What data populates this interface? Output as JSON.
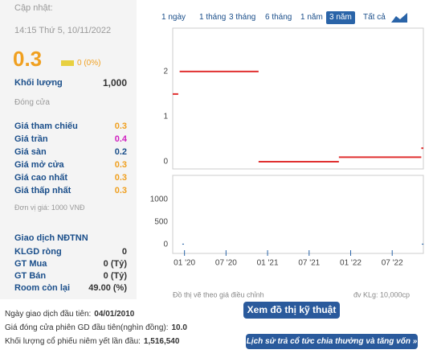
{
  "header": {
    "updated_label": "Cập nhật:",
    "updated_time": "14:15 Thứ 5, 10/11/2022",
    "price": "0.3",
    "change": "0 (0%)"
  },
  "volume": {
    "label": "Khối lượng",
    "value": "1,000",
    "close_label": "Đóng cửa"
  },
  "prices": [
    [
      "Giá tham chiếu",
      "0.3"
    ],
    [
      "Giá trần",
      "0.4"
    ],
    [
      "Giá sàn",
      "0.2"
    ],
    [
      "Giá mở cửa",
      "0.3"
    ],
    [
      "Giá cao nhất",
      "0.3"
    ],
    [
      "Giá thấp nhất",
      "0.3"
    ]
  ],
  "unit_note": "Đơn vị giá: 1000 VNĐ",
  "foreign": {
    "title": "Giao dịch NĐTNN",
    "rows": [
      [
        "KLGD ròng",
        "0"
      ],
      [
        "GT Mua",
        "0 (Tỷ)"
      ],
      [
        "GT Bán",
        "0 (Tỷ)"
      ],
      [
        "Room còn lại",
        "49.00 (%)"
      ]
    ]
  },
  "tabs": [
    "1 ngày",
    "1 tháng",
    "3 tháng",
    "6 tháng",
    "1 năm",
    "3 năm",
    "Tất cả"
  ],
  "chart_data": {
    "type": "step",
    "segments": [
      {
        "x": [
          -1.7,
          -0.9
        ],
        "value": 1.5
      },
      {
        "x": [
          -0.7,
          10.7
        ],
        "value": 2.0
      },
      {
        "x": [
          10.7,
          22.3
        ],
        "value": 0.0
      },
      {
        "x": [
          22.3,
          34.2
        ],
        "value": 0.1
      },
      {
        "x": [
          34.2,
          34.5
        ],
        "value": 0.3
      }
    ],
    "color": "#e03030",
    "ylim": [
      -0.16,
      2.96
    ],
    "yticks": [
      0,
      1,
      2
    ],
    "xlim": [
      -1.7,
      34.5
    ],
    "xticks": [
      {
        "value": 0,
        "label": "01 '20"
      },
      {
        "value": 6,
        "label": "07 '20"
      },
      {
        "value": 12,
        "label": "01 '21"
      },
      {
        "value": 18,
        "label": "07 '21"
      },
      {
        "value": 24,
        "label": "01 '22"
      },
      {
        "value": 30,
        "label": "07 '22"
      }
    ],
    "volume": {
      "x": [
        -0.2,
        34.4
      ],
      "values": [
        20,
        20
      ],
      "color": "#2a64a8",
      "ylim": [
        -196,
        1536
      ],
      "yticks": [
        0,
        500,
        1000
      ]
    },
    "note": "Đồ thị vẽ theo giá điều chỉnh",
    "volume_unit": "đv KLg: 10,000cp"
  },
  "technical_button": "Xem đồ thị kỹ thuật",
  "footer": [
    [
      "Ngày giao dịch đầu tiên:",
      "04/01/2010"
    ],
    [
      "Giá đóng cửa phiên GD đầu tiên(nghìn đồng):",
      "10.0"
    ],
    [
      "Khối lượng cổ phiếu niêm yết lần đầu:",
      "1,516,540"
    ]
  ],
  "dividend_button": "Lịch sử trả cổ tức chia thưởng và tăng vốn »"
}
